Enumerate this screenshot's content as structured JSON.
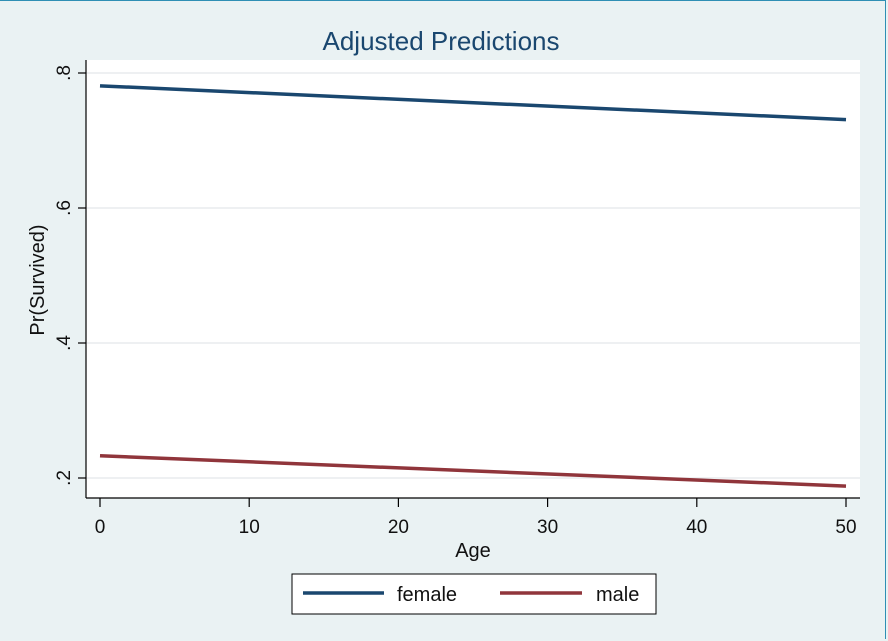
{
  "chart_data": {
    "type": "line",
    "title": "Adjusted Predictions",
    "xlabel": "Age",
    "ylabel": "Pr(Survived)",
    "xlim": [
      0,
      50
    ],
    "ylim": [
      0.2,
      0.8
    ],
    "xticks": [
      0,
      10,
      20,
      30,
      40,
      50
    ],
    "xtick_labels": [
      "0",
      "10",
      "20",
      "30",
      "40",
      "50"
    ],
    "yticks": [
      0.2,
      0.4,
      0.6,
      0.8
    ],
    "ytick_labels": [
      ".2",
      ".4",
      ".6",
      ".8"
    ],
    "grid": true,
    "legend_position": "bottom",
    "series": [
      {
        "name": "female",
        "color": "#1a476f",
        "x": [
          0,
          50
        ],
        "y": [
          0.781,
          0.731
        ]
      },
      {
        "name": "male",
        "color": "#90353b",
        "x": [
          0,
          50
        ],
        "y": [
          0.233,
          0.188
        ]
      }
    ]
  }
}
